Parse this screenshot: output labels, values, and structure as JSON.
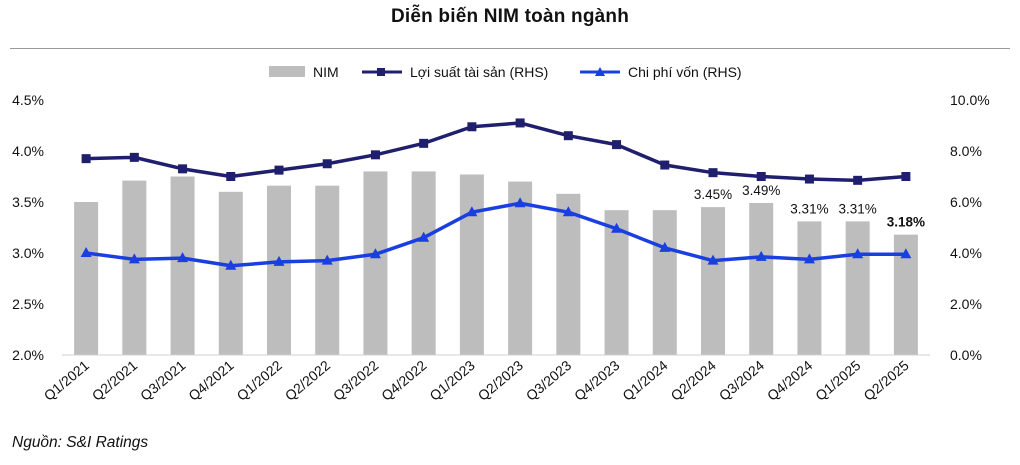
{
  "chart_data": {
    "type": "bar",
    "title": "Diễn biến NIM toàn ngành",
    "source": "Nguồn: S&I Ratings",
    "categories": [
      "Q1/2021",
      "Q2/2021",
      "Q3/2021",
      "Q4/2021",
      "Q1/2022",
      "Q2/2022",
      "Q3/2022",
      "Q4/2022",
      "Q1/2023",
      "Q2/2023",
      "Q3/2023",
      "Q4/2023",
      "Q1/2024",
      "Q2/2024",
      "Q3/2024",
      "Q4/2024",
      "Q1/2025",
      "Q2/2025"
    ],
    "series": [
      {
        "name": "NIM",
        "type": "bar",
        "axis": "left",
        "color": "#bdbdbd",
        "values": [
          3.5,
          3.71,
          3.75,
          3.6,
          3.66,
          3.66,
          3.8,
          3.8,
          3.77,
          3.7,
          3.58,
          3.42,
          3.42,
          3.45,
          3.49,
          3.31,
          3.31,
          3.18
        ]
      },
      {
        "name": "Lợi suất tài sản (RHS)",
        "type": "line",
        "axis": "right",
        "color": "#1f1f6e",
        "marker": "square",
        "values": [
          7.7,
          7.75,
          7.3,
          7.0,
          7.25,
          7.5,
          7.85,
          8.3,
          8.95,
          9.1,
          8.6,
          8.25,
          7.45,
          7.15,
          7.0,
          6.9,
          6.85,
          7.0
        ]
      },
      {
        "name": "Chi phí vốn (RHS)",
        "type": "line",
        "axis": "right",
        "color": "#1a3fe0",
        "marker": "triangle",
        "values": [
          4.0,
          3.75,
          3.8,
          3.5,
          3.65,
          3.7,
          3.95,
          4.6,
          5.6,
          5.95,
          5.6,
          4.95,
          4.2,
          3.7,
          3.85,
          3.75,
          3.95,
          3.95
        ]
      }
    ],
    "data_labels": [
      {
        "index": 13,
        "text": "3.45%",
        "bold": false
      },
      {
        "index": 14,
        "text": "3.49%",
        "bold": false
      },
      {
        "index": 15,
        "text": "3.31%",
        "bold": false
      },
      {
        "index": 16,
        "text": "3.31%",
        "bold": false
      },
      {
        "index": 17,
        "text": "3.18%",
        "bold": true
      }
    ],
    "yaxis_left": {
      "min": 2.0,
      "max": 4.5,
      "ticks": [
        "2.0%",
        "2.5%",
        "3.0%",
        "3.5%",
        "4.0%",
        "4.5%"
      ]
    },
    "yaxis_right": {
      "min": 0.0,
      "max": 10.0,
      "ticks": [
        "0.0%",
        "2.0%",
        "4.0%",
        "6.0%",
        "8.0%",
        "10.0%"
      ]
    },
    "legend_position": "top",
    "grid": false
  }
}
